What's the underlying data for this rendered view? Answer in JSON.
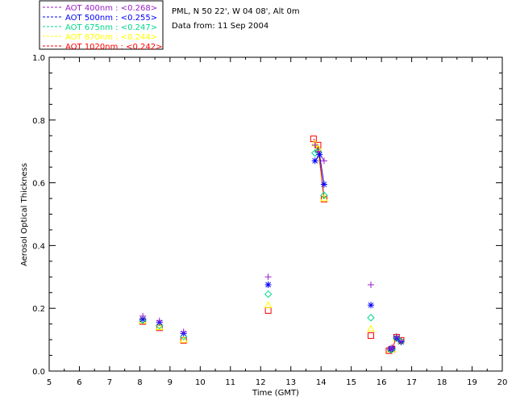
{
  "header": {
    "location": "PML, N 50 22', W 04 08', Alt 0m",
    "date_line": "Data from: 11 Sep 2004"
  },
  "chart_data": {
    "type": "scatter",
    "xlabel": "Time (GMT)",
    "ylabel": "Aerosol Optical Thickness",
    "xlim": [
      5,
      20
    ],
    "ylim": [
      0.0,
      1.0
    ],
    "xticks": [
      5,
      6,
      7,
      8,
      9,
      10,
      11,
      12,
      13,
      14,
      15,
      16,
      17,
      18,
      19,
      20
    ],
    "yticks": [
      0.0,
      0.2,
      0.4,
      0.6,
      0.8,
      1.0
    ],
    "grid": false,
    "legend_position": "top-left, outside plot",
    "series": [
      {
        "name": "AOT  400nm : <0.268>",
        "color": "#9a1fc8",
        "marker": "plus",
        "x": [
          8.1,
          8.65,
          9.45,
          12.25,
          13.8,
          13.9,
          14.1,
          15.65,
          16.3,
          16.35,
          16.5,
          16.65
        ],
        "y": [
          0.175,
          0.16,
          0.125,
          0.3,
          0.72,
          0.7,
          0.67,
          0.275,
          0.07,
          0.075,
          0.11,
          0.095
        ],
        "line_segments": [
          [
            4,
            6
          ]
        ]
      },
      {
        "name": "AOT  500nm : <0.255>",
        "color": "#0000ff",
        "marker": "asterisk",
        "x": [
          8.1,
          8.65,
          9.45,
          12.25,
          13.8,
          13.95,
          14.1,
          15.65,
          16.3,
          16.35,
          16.5,
          16.65
        ],
        "y": [
          0.165,
          0.155,
          0.12,
          0.275,
          0.67,
          0.69,
          0.595,
          0.21,
          0.07,
          0.072,
          0.105,
          0.093
        ],
        "line_segments": [
          [
            4,
            6
          ]
        ]
      },
      {
        "name": "AOT  675nm : <0.247>",
        "color": "#00d88a",
        "marker": "diamond",
        "x": [
          8.1,
          8.65,
          9.45,
          12.25,
          13.8,
          13.9,
          14.1,
          15.65,
          16.3,
          16.35,
          16.5,
          16.65
        ],
        "y": [
          0.162,
          0.145,
          0.11,
          0.245,
          0.695,
          0.7,
          0.56,
          0.17,
          0.068,
          0.07,
          0.105,
          0.095
        ],
        "line_segments": [
          [
            4,
            6
          ]
        ]
      },
      {
        "name": "AOT  870nm : <0.244>",
        "color": "#ffff00",
        "marker": "triangle",
        "x": [
          8.1,
          8.65,
          9.45,
          12.25,
          13.8,
          13.9,
          14.1,
          15.65,
          16.3,
          16.35,
          16.5,
          16.65
        ],
        "y": [
          0.16,
          0.14,
          0.1,
          0.21,
          0.725,
          0.71,
          0.55,
          0.135,
          0.068,
          0.07,
          0.105,
          0.095
        ],
        "line_segments": [
          [
            4,
            6
          ]
        ]
      },
      {
        "name": "AOT 1020nm : <0.242>",
        "color": "#ff0000",
        "marker": "square",
        "x": [
          8.1,
          8.65,
          9.45,
          12.25,
          13.75,
          13.9,
          14.1,
          15.65,
          16.25,
          16.35,
          16.5,
          16.65
        ],
        "y": [
          0.158,
          0.138,
          0.098,
          0.193,
          0.74,
          0.72,
          0.548,
          0.113,
          0.065,
          0.07,
          0.108,
          0.098
        ],
        "line_segments": [
          [
            4,
            6
          ],
          [
            8,
            11
          ]
        ]
      }
    ]
  }
}
